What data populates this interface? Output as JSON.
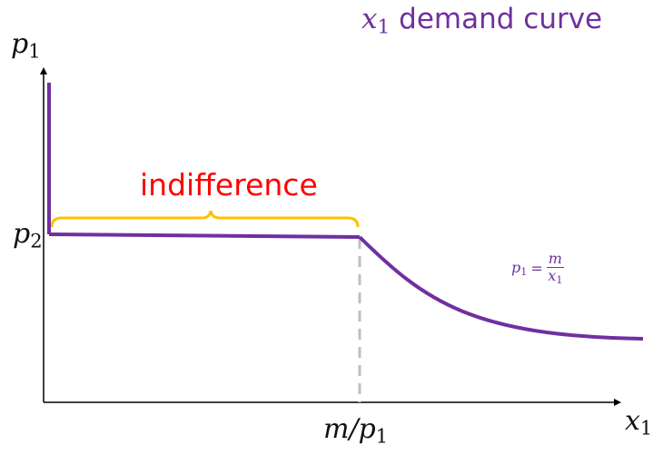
{
  "title": {
    "var": "x",
    "sub": "1",
    "word": "demand curve"
  },
  "axes": {
    "y_label": {
      "var": "p",
      "sub": "1"
    },
    "x_label": {
      "var": "x",
      "sub": "1"
    }
  },
  "ticks": {
    "p2": {
      "var": "p",
      "sub": "2"
    },
    "m_over_p1": {
      "text": "m/p",
      "sub": "1"
    }
  },
  "annotation": {
    "indifference": "indifference"
  },
  "formula": {
    "lhs_var": "p",
    "lhs_sub": "1",
    "equals": "=",
    "numerator": "m",
    "den_var": "x",
    "den_sub": "1"
  },
  "colors": {
    "curve": "#7030a0",
    "brace": "#ffc000",
    "indifference_text": "#ff0000",
    "dashed_guide": "#bfbfbf",
    "axes": "#000000"
  }
}
